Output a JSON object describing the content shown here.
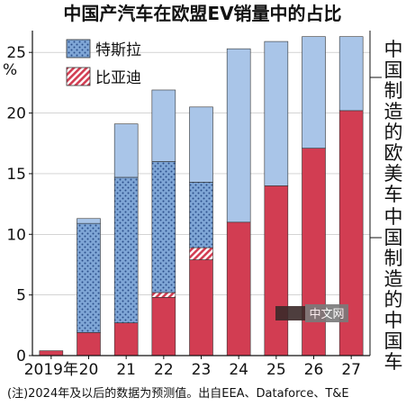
{
  "chart_data": {
    "type": "bar",
    "title": "中国产汽车在欧盟EV销量中的占比",
    "ylabel": "%",
    "ylim": [
      0,
      26.5
    ],
    "yticks": [
      "0",
      "5",
      "10",
      "15",
      "20",
      "25"
    ],
    "categories": [
      "2019年",
      "20",
      "21",
      "22",
      "23",
      "24",
      "25",
      "26",
      "27"
    ],
    "series": [
      {
        "name": "中国制造的中国车",
        "color": "#d23d52",
        "values": [
          0.4,
          1.9,
          2.7,
          4.8,
          7.9,
          11.0,
          14.0,
          17.1,
          20.2
        ]
      },
      {
        "name": "比亚迪",
        "color": "#d23d52",
        "pattern": "hatch",
        "values": [
          0,
          0,
          0,
          0.4,
          1.0,
          0,
          0,
          0,
          0
        ]
      },
      {
        "name": "特斯拉",
        "color": "#7fa6d6",
        "pattern": "dots",
        "values": [
          0,
          9.0,
          12.0,
          10.8,
          5.4,
          0,
          0,
          0,
          0
        ]
      },
      {
        "name": "中国制造的欧美车",
        "color": "#a9c5e8",
        "values": [
          0,
          0.4,
          4.4,
          5.9,
          6.2,
          14.3,
          11.9,
          9.2,
          6.1
        ]
      }
    ],
    "legend": [
      {
        "label": "特斯拉",
        "pattern": "dots"
      },
      {
        "label": "比亚迪",
        "pattern": "hatch"
      }
    ],
    "side_labels": [
      "中国制造的欧美车",
      "中国制造的中国车"
    ],
    "note": "(注)2024年及以后的数据为预测值。出自EEA、Dataforce、T&E",
    "forecast_from": "24"
  },
  "watermark": "中文网"
}
